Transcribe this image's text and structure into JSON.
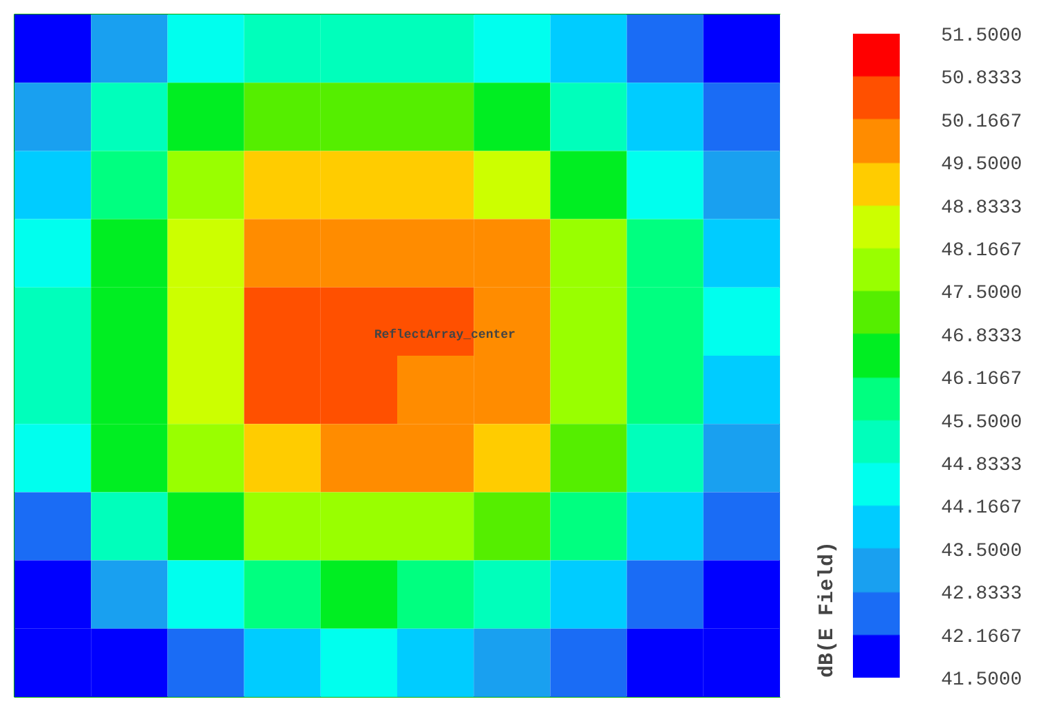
{
  "chart_data": {
    "type": "heatmap",
    "clabel": "dB(E Field)",
    "categories": [
      null,
      null,
      null,
      null,
      null,
      null,
      null,
      null,
      null,
      null
    ],
    "y_categories": [
      null,
      null,
      null,
      null,
      null,
      null,
      null,
      null,
      null,
      null
    ],
    "cells": [
      [
        41.8,
        43.2,
        44.5,
        45.2,
        45.2,
        45.2,
        44.5,
        43.8,
        42.5,
        41.8
      ],
      [
        43.2,
        45.2,
        46.5,
        47.2,
        47.2,
        47.2,
        46.5,
        45.2,
        43.8,
        42.5
      ],
      [
        43.8,
        45.8,
        47.8,
        49.2,
        49.2,
        49.2,
        48.5,
        46.5,
        44.5,
        43.2
      ],
      [
        44.5,
        46.5,
        48.5,
        49.8,
        49.8,
        49.8,
        49.8,
        47.8,
        45.8,
        43.8
      ],
      [
        45.2,
        46.5,
        48.5,
        50.5,
        50.5,
        50.5,
        49.8,
        47.8,
        45.8,
        44.5
      ],
      [
        45.2,
        46.5,
        48.5,
        50.5,
        50.5,
        49.8,
        49.8,
        47.8,
        45.8,
        43.8
      ],
      [
        44.5,
        46.5,
        47.8,
        49.2,
        49.8,
        49.8,
        49.2,
        47.2,
        45.2,
        43.2
      ],
      [
        42.5,
        45.2,
        46.5,
        47.8,
        47.8,
        47.8,
        47.2,
        45.8,
        43.8,
        42.5
      ],
      [
        41.8,
        43.2,
        44.5,
        45.8,
        46.5,
        45.8,
        45.2,
        43.8,
        42.5,
        41.8
      ],
      [
        41.8,
        41.8,
        42.5,
        43.8,
        44.5,
        43.8,
        43.2,
        42.5,
        41.8,
        41.8
      ]
    ],
    "clim": [
      41.5,
      51.5
    ],
    "cticks": [
      {
        "value": 41.5,
        "label": "41.5000"
      },
      {
        "value": 42.1667,
        "label": "42.1667"
      },
      {
        "value": 42.8333,
        "label": "42.8333"
      },
      {
        "value": 43.5,
        "label": "43.5000"
      },
      {
        "value": 44.1667,
        "label": "44.1667"
      },
      {
        "value": 44.8333,
        "label": "44.8333"
      },
      {
        "value": 45.5,
        "label": "45.5000"
      },
      {
        "value": 46.1667,
        "label": "46.1667"
      },
      {
        "value": 46.8333,
        "label": "46.8333"
      },
      {
        "value": 47.5,
        "label": "47.5000"
      },
      {
        "value": 48.1667,
        "label": "48.1667"
      },
      {
        "value": 48.8333,
        "label": "48.8333"
      },
      {
        "value": 49.5,
        "label": "49.5000"
      },
      {
        "value": 50.1667,
        "label": "50.1667"
      },
      {
        "value": 50.8333,
        "label": "50.8333"
      },
      {
        "value": 51.5,
        "label": "51.5000"
      }
    ],
    "colors": [
      "#0000ff",
      "#1a6cf5",
      "#19a0f0",
      "#00ccff",
      "#00ffee",
      "#00ffbb",
      "#00ff80",
      "#00ee22",
      "#55ee00",
      "#99ff00",
      "#ccff00",
      "#ffcc00",
      "#ff8c00",
      "#ff5000",
      "#ff0000"
    ],
    "annotations": [
      "ReflectArray_center"
    ],
    "tick_labels": false
  }
}
